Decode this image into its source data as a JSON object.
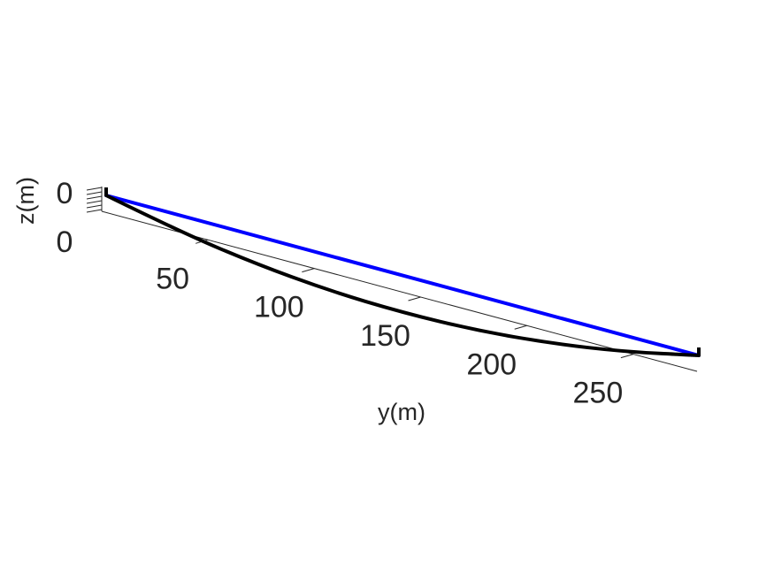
{
  "chart_data": {
    "type": "line",
    "view": "3d",
    "title": "",
    "xlabel": "y(m)",
    "zlabel": "z(m)",
    "y_ticks": [
      50,
      100,
      150,
      200,
      250
    ],
    "y_tick_labels": [
      "50",
      "100",
      "150",
      "200",
      "250"
    ],
    "z_tick_labels": [
      "0",
      "0"
    ],
    "ylim": [
      0,
      280
    ],
    "series": [
      {
        "color": "#0000ff",
        "style": "straight chord",
        "y": [
          0,
          280
        ],
        "z": [
          0,
          0
        ]
      },
      {
        "color": "#000000",
        "style": "sagging curve",
        "y": [
          0,
          35,
          70,
          105,
          140,
          175,
          210,
          245,
          280
        ],
        "z": [
          0,
          -0.44,
          -0.75,
          -0.94,
          -1.0,
          -0.94,
          -0.75,
          -0.44,
          0
        ]
      }
    ],
    "grid": false,
    "legend": "none"
  }
}
